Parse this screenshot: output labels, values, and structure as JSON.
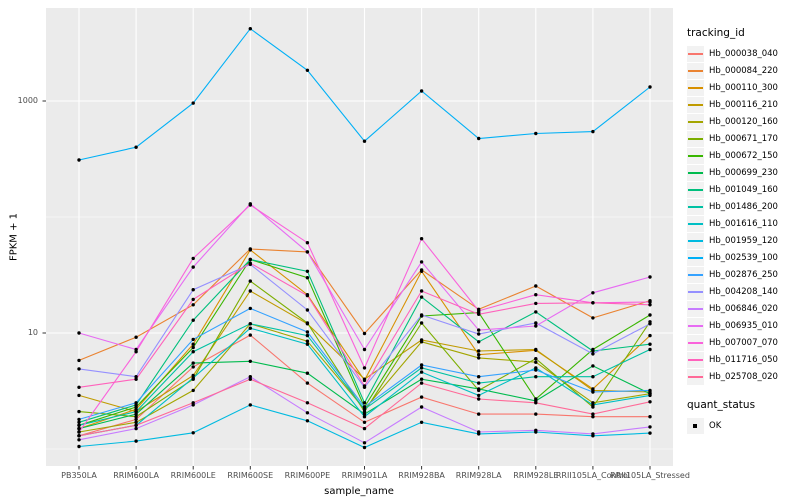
{
  "chart_data": {
    "type": "line",
    "xlabel": "sample_name",
    "ylabel": "FPKM + 1",
    "y_scale": "log10",
    "y_tick_labels": [
      "1000",
      "10"
    ],
    "y_ticks": [
      1000,
      10
    ],
    "y_gridlines_major": [
      10,
      1000
    ],
    "y_gridlines_minor": [
      1,
      100
    ],
    "ylim": [
      0.7,
      6500
    ],
    "grid": "on",
    "panel_background": "#EBEBEB",
    "gridline_color": "#FFFFFF",
    "point_color": "#000000",
    "legend_position": "right",
    "legend_title": "tracking_id",
    "point_legend": {
      "title": "quant_status",
      "label": "OK",
      "marker_color": "#000000"
    },
    "categories": [
      "PB350LA",
      "RRIM600LA",
      "RRIM600LE",
      "RRIM600SE",
      "RRIM600PE",
      "RRIM901LA",
      "RRIM928BA",
      "RRIM928LA",
      "RRIM928LE",
      "RRII105LA_Control",
      "RRII105LA_Stressed"
    ],
    "series": [
      {
        "name": "Hb_000038_040",
        "color": "#F8766D",
        "values": [
          1.3,
          1.8,
          5.1,
          9.6,
          3.7,
          1.7,
          2.8,
          2.0,
          2.0,
          1.9,
          1.9
        ]
      },
      {
        "name": "Hb_000084_220",
        "color": "#EA8331",
        "values": [
          5.8,
          9.2,
          17.5,
          53,
          50,
          9.9,
          35,
          16,
          25.4,
          13.5,
          19
        ]
      },
      {
        "name": "Hb_000110_300",
        "color": "#D89000",
        "values": [
          1.5,
          2.2,
          8.0,
          52,
          21.4,
          3.9,
          34,
          6.5,
          7.1,
          3.3,
          9.5
        ]
      },
      {
        "name": "Hb_000116_210",
        "color": "#C09B00",
        "values": [
          2.9,
          2.1,
          4.3,
          23,
          12,
          4.0,
          8.7,
          7.0,
          7.2,
          3.2,
          3.1
        ]
      },
      {
        "name": "Hb_000120_160",
        "color": "#A3A500",
        "values": [
          1.4,
          1.7,
          3.2,
          12,
          8.5,
          2.2,
          8.4,
          6.1,
          5.6,
          2.5,
          3.0
        ]
      },
      {
        "name": "Hb_000671_170",
        "color": "#7CAE00",
        "values": [
          2.1,
          1.9,
          4.0,
          28,
          12.2,
          2.1,
          12.2,
          3.2,
          6.0,
          2.3,
          12.5
        ]
      },
      {
        "name": "Hb_000672_150",
        "color": "#39B600",
        "values": [
          1.6,
          2.3,
          7.5,
          43,
          30,
          2.3,
          14,
          15,
          2.7,
          7.2,
          14.3
        ]
      },
      {
        "name": "Hb_000699_230",
        "color": "#00BB4E",
        "values": [
          1.5,
          2.0,
          5.5,
          5.7,
          4.5,
          2.0,
          4.0,
          3.3,
          2.6,
          5.2,
          3.0
        ]
      },
      {
        "name": "Hb_001049_160",
        "color": "#00BF7D",
        "values": [
          1.7,
          2.4,
          12.9,
          43,
          34,
          2.5,
          20.4,
          8.4,
          15.2,
          7.0,
          8.0
        ]
      },
      {
        "name": "Hb_001486_200",
        "color": "#00C1A3",
        "values": [
          1.6,
          2.1,
          6.9,
          12,
          9.5,
          2.2,
          5.0,
          3.7,
          4.2,
          4.2,
          7.2
        ]
      },
      {
        "name": "Hb_001616_110",
        "color": "#00BFC4",
        "values": [
          1.3,
          1.6,
          4.1,
          11,
          8.0,
          1.9,
          4.6,
          2.9,
          5.0,
          2.4,
          2.9
        ]
      },
      {
        "name": "Hb_001959_120",
        "color": "#00BAE0",
        "values": [
          1.05,
          1.17,
          1.38,
          2.4,
          1.75,
          1.03,
          1.7,
          1.35,
          1.4,
          1.3,
          1.37
        ]
      },
      {
        "name": "Hb_002539_100",
        "color": "#00B0F6",
        "values": [
          310,
          400,
          960,
          4200,
          1840,
          450,
          1220,
          475,
          525,
          545,
          1320
        ]
      },
      {
        "name": "Hb_002876_250",
        "color": "#35A2FF",
        "values": [
          1.8,
          2.5,
          8.8,
          16.3,
          10.2,
          2.3,
          5.3,
          4.2,
          4.8,
          3.1,
          3.2
        ]
      },
      {
        "name": "Hb_004208_140",
        "color": "#9590FF",
        "values": [
          4.9,
          4.2,
          23.6,
          39,
          15.8,
          3.4,
          14.3,
          9.8,
          12.2,
          6.6,
          12.0
        ]
      },
      {
        "name": "Hb_006846_020",
        "color": "#C77CFF",
        "values": [
          1.2,
          1.5,
          2.4,
          4.2,
          2.05,
          1.13,
          2.3,
          1.4,
          1.45,
          1.35,
          1.55
        ]
      },
      {
        "name": "Hb_006935_010",
        "color": "#E76BF3",
        "values": [
          10.0,
          7.2,
          37,
          130,
          50,
          7.2,
          41,
          10.6,
          11.5,
          22.2,
          30.4
        ]
      },
      {
        "name": "Hb_007007_070",
        "color": "#FA62DB",
        "values": [
          1.4,
          6.9,
          44,
          127,
          60,
          5.0,
          65,
          15.5,
          21.4,
          18.2,
          18.5
        ]
      },
      {
        "name": "Hb_011716_050",
        "color": "#FF62BC",
        "values": [
          3.4,
          4.0,
          19.5,
          40,
          21,
          3.5,
          23,
          14.5,
          18,
          18.2,
          17.5
        ]
      },
      {
        "name": "Hb_025708_020",
        "color": "#FF6A98",
        "values": [
          1.3,
          1.6,
          2.5,
          4.0,
          2.5,
          1.5,
          3.7,
          2.7,
          2.5,
          2.0,
          2.55
        ]
      }
    ]
  }
}
